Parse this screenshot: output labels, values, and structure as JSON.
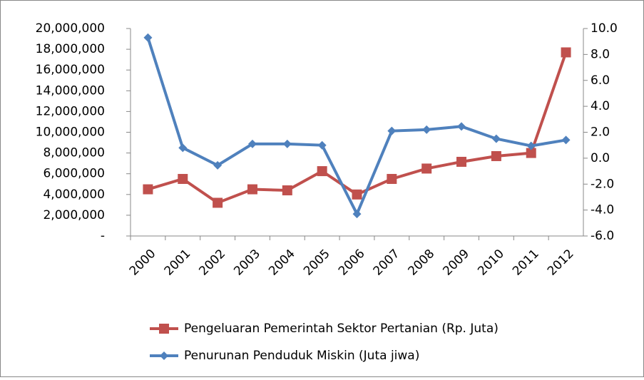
{
  "chart_data": {
    "type": "line",
    "categories": [
      "2000",
      "2001",
      "2002",
      "2003",
      "2004",
      "2005",
      "2006",
      "2007",
      "2008",
      "2009",
      "2010",
      "2011",
      "2012"
    ],
    "series": [
      {
        "name": "Pengeluaran Pemerintah Sektor Pertanian (Rp. Juta)",
        "color": "#c0504d",
        "marker": "square",
        "values": [
          4500000,
          5500000,
          3200000,
          4500000,
          4400000,
          6250000,
          4000000,
          5500000,
          6500000,
          7150000,
          7700000,
          8000000,
          17700000
        ]
      },
      {
        "name": "Penurunan Penduduk Miskin (Juta jiwa)",
        "color": "#4f81bd",
        "marker": "diamond",
        "axis": "y2",
        "values": [
          9.3,
          0.8,
          -0.55,
          1.1,
          1.1,
          1.0,
          -4.3,
          2.1,
          2.2,
          2.45,
          1.5,
          0.95,
          1.4
        ]
      }
    ],
    "ylim": [
      0,
      20000000
    ],
    "yticks": [
      {
        "value": 0,
        "label": "-"
      },
      {
        "value": 2000000,
        "label": "2,000,000"
      },
      {
        "value": 4000000,
        "label": "4,000,000"
      },
      {
        "value": 6000000,
        "label": "6,000,000"
      },
      {
        "value": 8000000,
        "label": "8,000,000"
      },
      {
        "value": 10000000,
        "label": "10,000,000"
      },
      {
        "value": 12000000,
        "label": "12,000,000"
      },
      {
        "value": 14000000,
        "label": "14,000,000"
      },
      {
        "value": 16000000,
        "label": "16,000,000"
      },
      {
        "value": 18000000,
        "label": "18,000,000"
      },
      {
        "value": 20000000,
        "label": "20,000,000"
      }
    ],
    "y2lim": [
      -6,
      10
    ],
    "y2ticks": [
      {
        "value": -6,
        "label": "-6.0"
      },
      {
        "value": -4,
        "label": "-4.0"
      },
      {
        "value": -2,
        "label": "-2.0"
      },
      {
        "value": 0,
        "label": "0.0"
      },
      {
        "value": 2,
        "label": "2.0"
      },
      {
        "value": 4,
        "label": "4.0"
      },
      {
        "value": 6,
        "label": "6.0"
      },
      {
        "value": 8,
        "label": "8.0"
      },
      {
        "value": 10,
        "label": "10.0"
      }
    ],
    "grid": false,
    "legend": "bottom"
  }
}
